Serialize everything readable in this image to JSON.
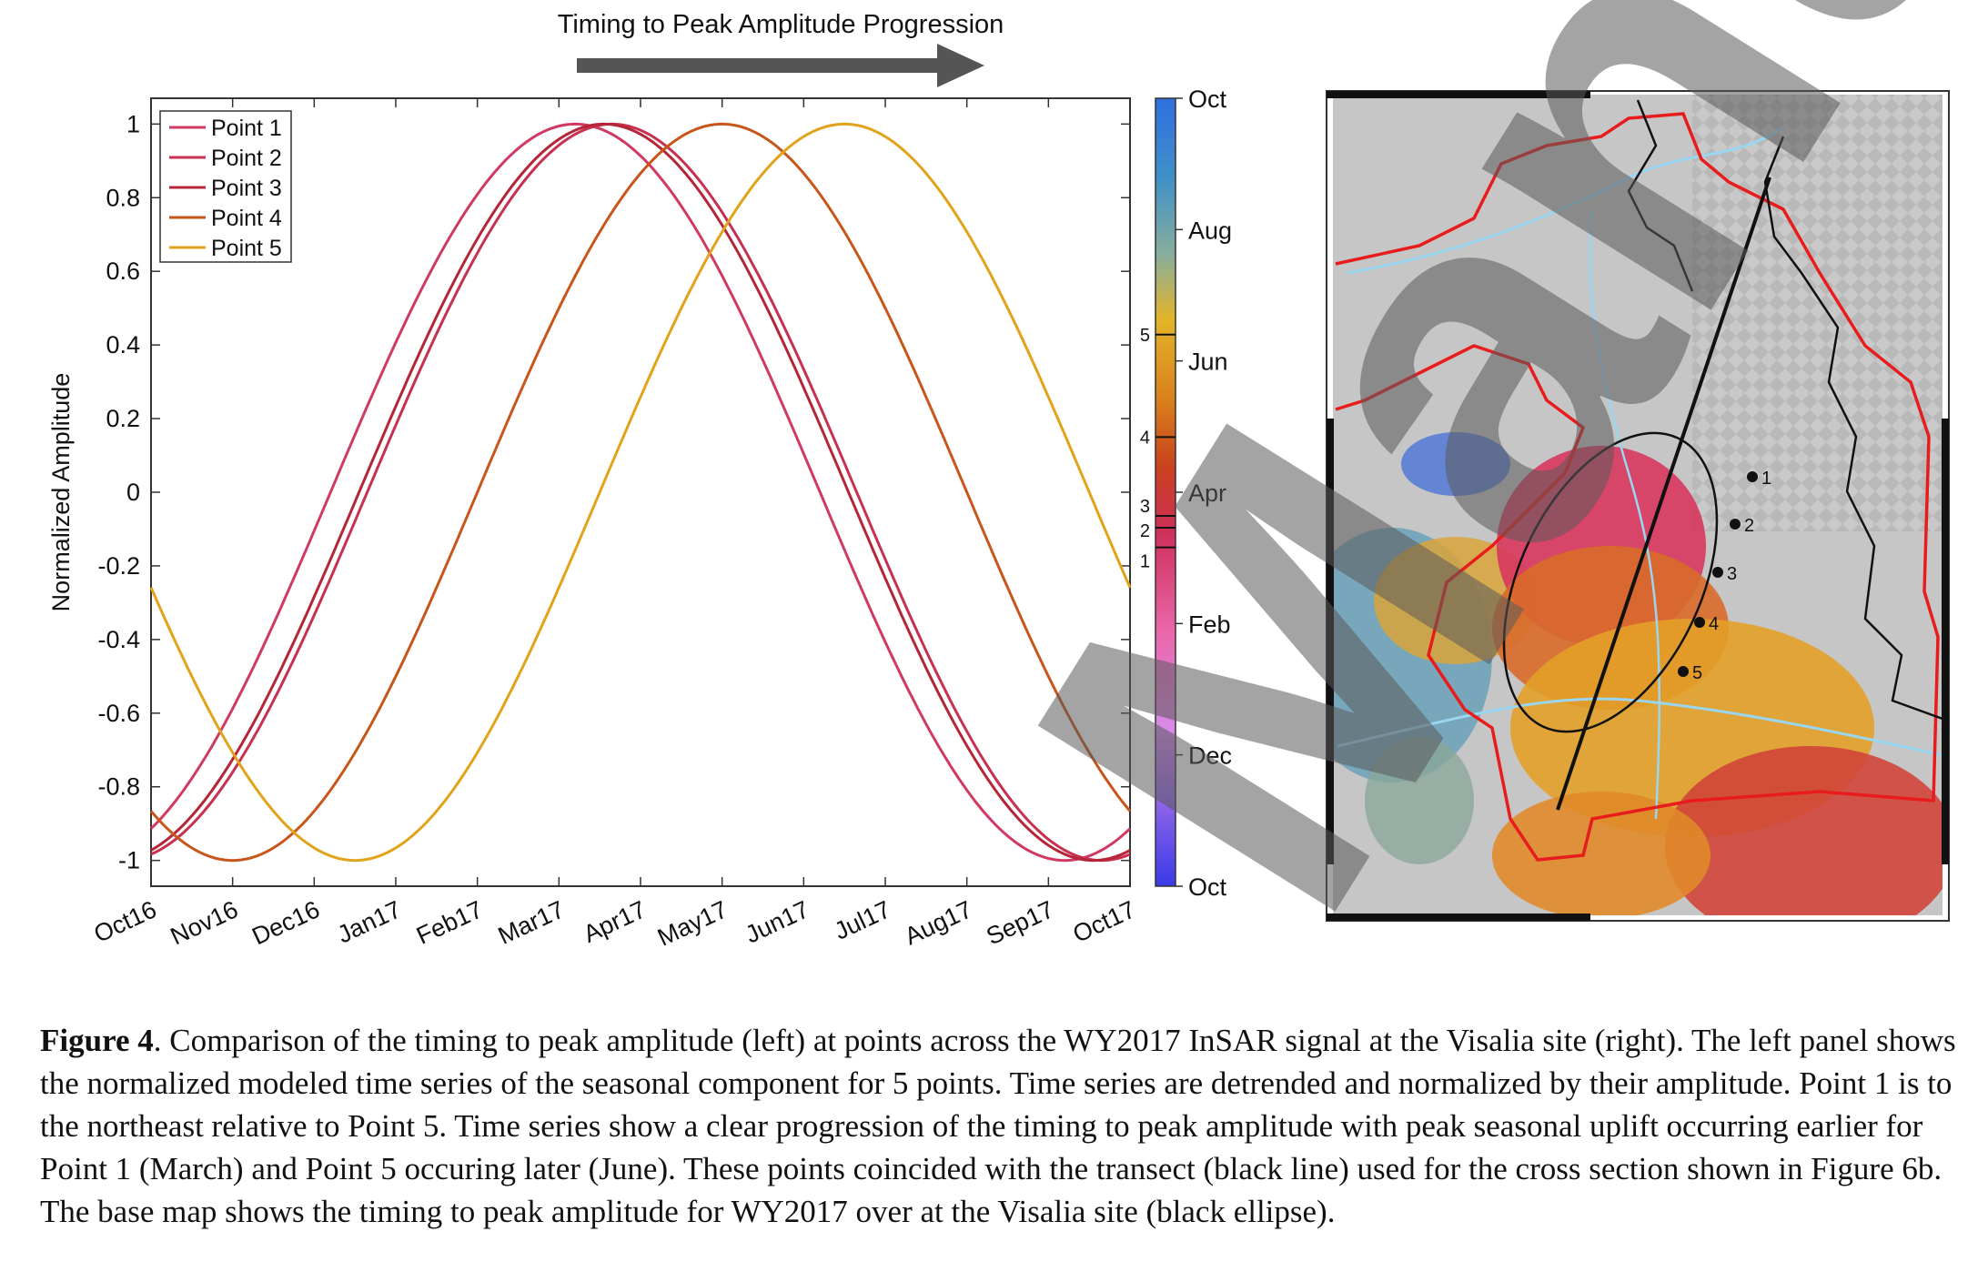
{
  "header": {
    "arrow_label": "Timing to Peak Amplitude Progression"
  },
  "chart_data": {
    "type": "line",
    "ylabel": "Normalized Amplitude",
    "xlabel": "",
    "title": "",
    "x_ticks": [
      "Oct16",
      "Nov16",
      "Dec16",
      "Jan17",
      "Feb17",
      "Mar17",
      "Apr17",
      "May17",
      "Jun17",
      "Jul17",
      "Aug17",
      "Sep17",
      "Oct17"
    ],
    "y_ticks": [
      "1",
      "0.8",
      "0.6",
      "0.4",
      "0.2",
      "0",
      "-0.2",
      "-0.4",
      "-0.6",
      "-0.8",
      "-1"
    ],
    "ylim": [
      -1.07,
      1.07
    ],
    "xlim_months": [
      0,
      12
    ],
    "legend_position": "top-left",
    "series": [
      {
        "name": "Point 1",
        "color": "#d03a62",
        "peak_month": 5.2,
        "period_months": 12
      },
      {
        "name": "Point 2",
        "color": "#c8304f",
        "peak_month": 5.65,
        "period_months": 12
      },
      {
        "name": "Point 3",
        "color": "#b52538",
        "peak_month": 5.55,
        "period_months": 12
      },
      {
        "name": "Point 4",
        "color": "#c8561a",
        "peak_month": 7.0,
        "period_months": 12
      },
      {
        "name": "Point 5",
        "color": "#e0a31a",
        "peak_month": 8.5,
        "period_months": 12
      }
    ]
  },
  "colorbar": {
    "labels": [
      "Oct",
      "Aug",
      "Jun",
      "Apr",
      "Feb",
      "Dec",
      "Oct"
    ],
    "point_markers": [
      "5",
      "4",
      "3",
      "2",
      "1"
    ],
    "point_marker_positions": [
      0.3,
      0.43,
      0.53,
      0.545,
      0.57
    ],
    "colors": [
      "#2f7fd8",
      "#4d9cc2",
      "#8ab3a0",
      "#d9b43a",
      "#e8a61c",
      "#d77a1e",
      "#c8401e",
      "#d8365e",
      "#e86aa8",
      "#e88ad8",
      "#9a7ae8",
      "#3a3ae8"
    ]
  },
  "map": {
    "transect_points": [
      "1",
      "2",
      "3",
      "4",
      "5"
    ]
  },
  "caption": {
    "label": "Figure 4",
    "text": ". Comparison of the timing to peak amplitude (left) at points across the WY2017 InSAR signal at the Visalia site (right). The left panel shows the normalized modeled time series of the seasonal component for 5 points. Time series are detrended and normalized by their amplitude. Point 1 is to the northeast relative to Point 5. Time series show a clear progression of the timing to peak amplitude with peak seasonal uplift occurring earlier for Point 1 (March) and Point 5 occuring later (June). These points coincided with the transect (black line) used for the cross section shown in Figure 6b. The base map shows the timing to peak amplitude for WY2017 over at the Visalia site (black ellipse)."
  },
  "watermark": {
    "text": "Manuscript"
  }
}
